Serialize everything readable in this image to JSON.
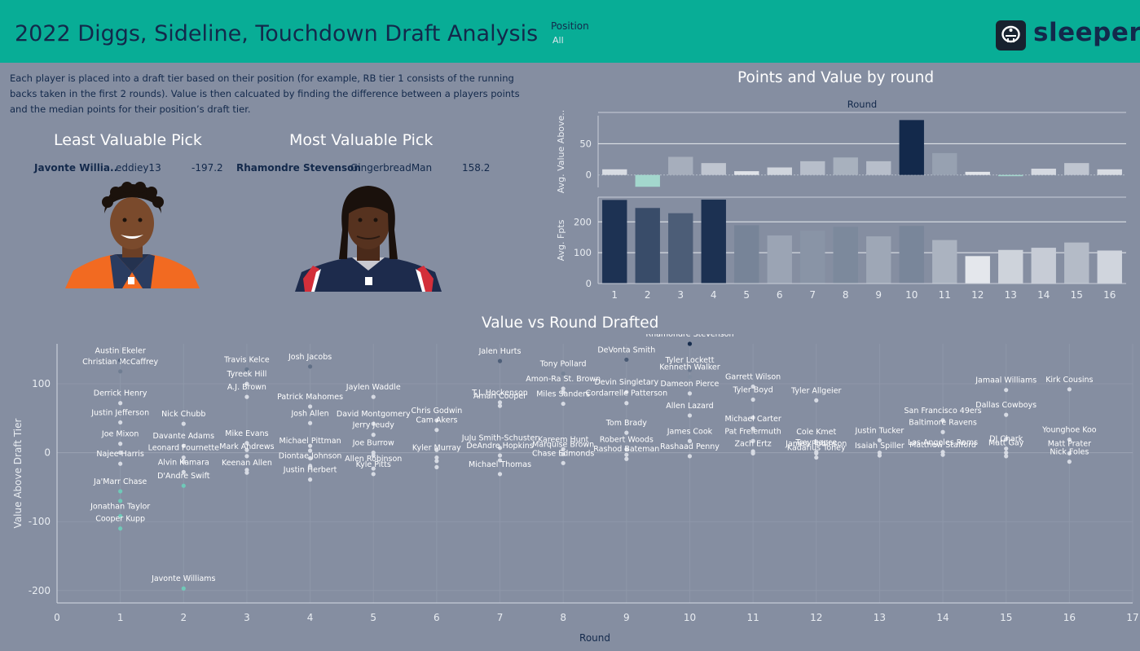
{
  "header": {
    "title": "2022 Diggs, Sideline, Touchdown Draft Analysis",
    "filter_label": "Position",
    "filter_value": "All",
    "logo_text": "sleeper"
  },
  "intro_text": "Each player is placed into a draft tier based on their position (for example, RB tier 1 consists of the running backs taken in the first 2 rounds). Value is then calcuated by finding the difference between a players points and the median points for their position’s draft tier.",
  "least_valuable": {
    "heading": "Least Valuable Pick",
    "player": "Javonte Willia..",
    "team": "eddiey13",
    "value": "-197.2"
  },
  "most_valuable": {
    "heading": "Most Valuable Pick",
    "player": "Rhamondre Stevenson",
    "team": "GingerbreadMan",
    "value": "158.2"
  },
  "colors": {
    "header": "#08ad96",
    "background": "#858ea1",
    "title_text": "#13294b",
    "dark_navy": "#13294b",
    "teal": "#a3d7cd",
    "light_grey": "#eef0f4"
  },
  "chart_data": [
    {
      "type": "bar",
      "title": "Points and Value by round",
      "xlabel": "Round",
      "categories": [
        "1",
        "2",
        "3",
        "4",
        "5",
        "6",
        "7",
        "8",
        "9",
        "10",
        "11",
        "12",
        "13",
        "14",
        "15",
        "16"
      ],
      "series": [
        {
          "name": "Avg. Value Above..",
          "values": [
            9,
            -19,
            29,
            19,
            6,
            12,
            22,
            28,
            22,
            88,
            35,
            5,
            -2,
            10,
            19,
            9
          ],
          "ylim": [
            -20,
            95
          ],
          "ticks": [
            0,
            50
          ]
        },
        {
          "name": "Avg. Fpts",
          "values": [
            271,
            245,
            228,
            272,
            189,
            156,
            172,
            184,
            153,
            187,
            141,
            89,
            109,
            116,
            133,
            107
          ],
          "ylim": [
            0,
            280
          ],
          "ticks": [
            0,
            100,
            200
          ]
        }
      ]
    },
    {
      "type": "scatter",
      "title": "Value vs Round Drafted",
      "xlabel": "Round",
      "ylabel": "Value Above Draft Tier",
      "xlim": [
        0,
        17
      ],
      "ylim": [
        -218,
        158
      ],
      "xticks": [
        0,
        1,
        2,
        3,
        4,
        5,
        6,
        7,
        8,
        9,
        10,
        11,
        12,
        13,
        14,
        15,
        16,
        17
      ],
      "yticks": [
        -200,
        -100,
        0,
        100
      ],
      "points": [
        {
          "x": 1,
          "y": 134,
          "label": "Austin Ekeler"
        },
        {
          "x": 1,
          "y": 118,
          "label": "Christian McCaffrey"
        },
        {
          "x": 1,
          "y": 72,
          "label": "Derrick Henry"
        },
        {
          "x": 1,
          "y": 44,
          "label": "Justin Jefferson"
        },
        {
          "x": 1,
          "y": 13,
          "label": "Joe Mixon"
        },
        {
          "x": 1,
          "y": 0,
          "label": ""
        },
        {
          "x": 1,
          "y": -16,
          "label": "Najee Harris"
        },
        {
          "x": 1,
          "y": -56,
          "label": "Ja'Marr Chase"
        },
        {
          "x": 1,
          "y": -70,
          "label": ""
        },
        {
          "x": 1,
          "y": -92,
          "label": "Jonathan Taylor"
        },
        {
          "x": 1,
          "y": -110,
          "label": "Cooper Kupp"
        },
        {
          "x": 2,
          "y": 42,
          "label": "Nick Chubb"
        },
        {
          "x": 2,
          "y": 10,
          "label": "Davante Adams"
        },
        {
          "x": 2,
          "y": -7,
          "label": "Leonard Fournette"
        },
        {
          "x": 2,
          "y": -13,
          "label": ""
        },
        {
          "x": 2,
          "y": -28,
          "label": "Alvin Kamara"
        },
        {
          "x": 2,
          "y": -48,
          "label": "D'Andre Swift"
        },
        {
          "x": 2,
          "y": -197,
          "label": "Javonte Williams"
        },
        {
          "x": 3,
          "y": 121,
          "label": "Travis Kelce"
        },
        {
          "x": 3,
          "y": 100,
          "label": "Tyreek Hill"
        },
        {
          "x": 3,
          "y": 81,
          "label": "A.J. Brown"
        },
        {
          "x": 3,
          "y": 14,
          "label": "Mike Evans"
        },
        {
          "x": 3,
          "y": 4,
          "label": ""
        },
        {
          "x": 3,
          "y": -5,
          "label": "Mark Andrews"
        },
        {
          "x": 3,
          "y": -25,
          "label": ""
        },
        {
          "x": 3,
          "y": -29,
          "label": "Keenan Allen"
        },
        {
          "x": 4,
          "y": 125,
          "label": "Josh Jacobs"
        },
        {
          "x": 4,
          "y": 67,
          "label": "Patrick Mahomes"
        },
        {
          "x": 4,
          "y": 43,
          "label": "Josh Allen"
        },
        {
          "x": 4,
          "y": 10,
          "label": ""
        },
        {
          "x": 4,
          "y": 3,
          "label": "Michael Pittman"
        },
        {
          "x": 4,
          "y": -8,
          "label": ""
        },
        {
          "x": 4,
          "y": -19,
          "label": "Diontae Johnson"
        },
        {
          "x": 4,
          "y": -39,
          "label": "Justin Herbert"
        },
        {
          "x": 5,
          "y": 81,
          "label": "Jaylen Waddle"
        },
        {
          "x": 5,
          "y": 42,
          "label": "David Montgomery"
        },
        {
          "x": 5,
          "y": 26,
          "label": "Jerry Jeudy"
        },
        {
          "x": 5,
          "y": 0,
          "label": "Joe Burrow"
        },
        {
          "x": 5,
          "y": -4,
          "label": ""
        },
        {
          "x": 5,
          "y": -23,
          "label": "Allen Robinson"
        },
        {
          "x": 5,
          "y": -31,
          "label": "Kyle Pitts"
        },
        {
          "x": 6,
          "y": 47,
          "label": "Chris Godwin"
        },
        {
          "x": 6,
          "y": 33,
          "label": "Cam Akers"
        },
        {
          "x": 6,
          "y": 4,
          "label": ""
        },
        {
          "x": 6,
          "y": -7,
          "label": "Kyler Murray"
        },
        {
          "x": 6,
          "y": -12,
          "label": ""
        },
        {
          "x": 6,
          "y": -21,
          "label": ""
        },
        {
          "x": 7,
          "y": 133,
          "label": "Jalen Hurts"
        },
        {
          "x": 7,
          "y": 73,
          "label": "T.J. Hockenson"
        },
        {
          "x": 7,
          "y": 68,
          "label": "Amari Cooper"
        },
        {
          "x": 7,
          "y": 7,
          "label": "JuJu Smith-Schuster"
        },
        {
          "x": 7,
          "y": -4,
          "label": "DeAndre Hopkins"
        },
        {
          "x": 7,
          "y": -11,
          "label": ""
        },
        {
          "x": 7,
          "y": -31,
          "label": "Michael Thomas"
        },
        {
          "x": 8,
          "y": 115,
          "label": "Tony Pollard"
        },
        {
          "x": 8,
          "y": 93,
          "label": "Amon-Ra St. Brown"
        },
        {
          "x": 8,
          "y": 88,
          "label": ""
        },
        {
          "x": 8,
          "y": 71,
          "label": "Miles Sanders"
        },
        {
          "x": 8,
          "y": 5,
          "label": "Kareem Hunt"
        },
        {
          "x": 8,
          "y": -2,
          "label": "Marquise Brown"
        },
        {
          "x": 8,
          "y": -15,
          "label": "Chase Edmonds"
        },
        {
          "x": 9,
          "y": 135,
          "label": "DeVonta Smith"
        },
        {
          "x": 9,
          "y": 88,
          "label": "Devin Singletary"
        },
        {
          "x": 9,
          "y": 72,
          "label": "Cordarrelle Patterson"
        },
        {
          "x": 9,
          "y": 29,
          "label": "Tom Brady"
        },
        {
          "x": 9,
          "y": 5,
          "label": "Robert Woods"
        },
        {
          "x": 9,
          "y": -3,
          "label": ""
        },
        {
          "x": 9,
          "y": -9,
          "label": "Rashod Bateman"
        },
        {
          "x": 10,
          "y": 158,
          "label": "Rhamondre Stevenson"
        },
        {
          "x": 10,
          "y": 120,
          "label": "Tyler Lockett"
        },
        {
          "x": 10,
          "y": 110,
          "label": "Kenneth Walker"
        },
        {
          "x": 10,
          "y": 86,
          "label": "Dameon Pierce"
        },
        {
          "x": 10,
          "y": 54,
          "label": "Allen Lazard"
        },
        {
          "x": 10,
          "y": 17,
          "label": "James Cook"
        },
        {
          "x": 10,
          "y": -5,
          "label": "Rashaad Penny"
        },
        {
          "x": 11,
          "y": 96,
          "label": "Garrett Wilson"
        },
        {
          "x": 11,
          "y": 77,
          "label": "Tyler Boyd"
        },
        {
          "x": 11,
          "y": 51,
          "label": ""
        },
        {
          "x": 11,
          "y": 35,
          "label": "Michael Carter"
        },
        {
          "x": 11,
          "y": 17,
          "label": "Pat Freiermuth"
        },
        {
          "x": 11,
          "y": 2,
          "label": ""
        },
        {
          "x": 11,
          "y": -1,
          "label": "Zach Ertz"
        },
        {
          "x": 12,
          "y": 76,
          "label": "Tyler Allgeier"
        },
        {
          "x": 12,
          "y": 16,
          "label": "Cole Kmet"
        },
        {
          "x": 12,
          "y": 1,
          "label": "Trey Lance"
        },
        {
          "x": 12,
          "y": -1,
          "label": "James Robinson"
        },
        {
          "x": 12,
          "y": -7,
          "label": "Kadarius Toney"
        },
        {
          "x": 13,
          "y": 18,
          "label": "Justin Tucker"
        },
        {
          "x": 13,
          "y": 0,
          "label": ""
        },
        {
          "x": 13,
          "y": -4,
          "label": "Isaiah Spiller"
        },
        {
          "x": 14,
          "y": 47,
          "label": "San Francisco 49ers"
        },
        {
          "x": 14,
          "y": 30,
          "label": "Baltimore Ravens"
        },
        {
          "x": 14,
          "y": 1,
          "label": "Los Angeles Rams"
        },
        {
          "x": 14,
          "y": -3,
          "label": "Matthew Stafford"
        },
        {
          "x": 15,
          "y": 91,
          "label": "Jamaal Williams"
        },
        {
          "x": 15,
          "y": 55,
          "label": "Dallas Cowboys"
        },
        {
          "x": 15,
          "y": 20,
          "label": ""
        },
        {
          "x": 15,
          "y": 6,
          "label": "DJ Chark"
        },
        {
          "x": 15,
          "y": 0,
          "label": "Matt Gay"
        },
        {
          "x": 15,
          "y": -5,
          "label": ""
        },
        {
          "x": 16,
          "y": 92,
          "label": "Kirk Cousins"
        },
        {
          "x": 16,
          "y": 19,
          "label": "Younghoe Koo"
        },
        {
          "x": 16,
          "y": -1,
          "label": "Matt Prater"
        },
        {
          "x": 16,
          "y": -13,
          "label": "Nick Foles"
        }
      ]
    }
  ]
}
